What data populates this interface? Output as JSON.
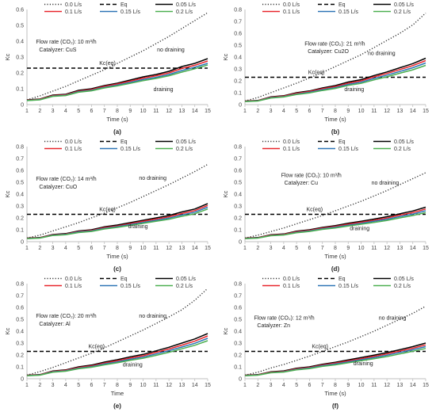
{
  "chart_data": [
    {
      "type": "line",
      "panel_label": "(a)",
      "xlabel": "Time (s)",
      "ylabel": "Kc",
      "xlim": [
        1,
        15
      ],
      "ylim": [
        0,
        0.6
      ],
      "yticks": [
        0,
        0.1,
        0.2,
        0.3,
        0.4,
        0.5,
        0.6
      ],
      "xticks": [
        1,
        2,
        3,
        4,
        5,
        6,
        7,
        8,
        9,
        10,
        11,
        12,
        13,
        14,
        15
      ],
      "grid": false,
      "legend": "top",
      "annotations": [
        "Flow rate (CO₂): 10 m³/h",
        "Catalyzer: CuS",
        "no draining",
        "Kc(eq)",
        "draining"
      ],
      "x": [
        1,
        2,
        3,
        4,
        5,
        6,
        7,
        8,
        9,
        10,
        11,
        12,
        13,
        14,
        15
      ],
      "series": [
        {
          "name": "0.0 L/s",
          "values": [
            0.03,
            0.055,
            0.085,
            0.115,
            0.15,
            0.185,
            0.22,
            0.26,
            0.3,
            0.34,
            0.385,
            0.43,
            0.48,
            0.53,
            0.58
          ]
        },
        {
          "name": "Eq",
          "values": [
            0.23,
            0.23,
            0.23,
            0.23,
            0.23,
            0.23,
            0.23,
            0.23,
            0.23,
            0.23,
            0.23,
            0.23,
            0.23,
            0.23,
            0.23
          ]
        },
        {
          "name": "0.05 L/s",
          "values": [
            0.03,
            0.035,
            0.06,
            0.065,
            0.09,
            0.1,
            0.12,
            0.135,
            0.155,
            0.175,
            0.19,
            0.21,
            0.24,
            0.26,
            0.29
          ]
        },
        {
          "name": "0.1 L/s",
          "values": [
            0.028,
            0.033,
            0.057,
            0.062,
            0.085,
            0.095,
            0.115,
            0.13,
            0.148,
            0.167,
            0.182,
            0.2,
            0.228,
            0.248,
            0.275
          ]
        },
        {
          "name": "0.15 L/s",
          "values": [
            0.026,
            0.031,
            0.054,
            0.059,
            0.081,
            0.09,
            0.109,
            0.123,
            0.14,
            0.158,
            0.172,
            0.19,
            0.215,
            0.236,
            0.26
          ]
        },
        {
          "name": "0.2 L/s",
          "values": [
            0.025,
            0.03,
            0.052,
            0.057,
            0.078,
            0.087,
            0.105,
            0.118,
            0.134,
            0.151,
            0.165,
            0.182,
            0.205,
            0.226,
            0.25
          ]
        }
      ]
    },
    {
      "type": "line",
      "panel_label": "(b)",
      "xlabel": "Time (s)",
      "ylabel": "Kc",
      "xlim": [
        1,
        15
      ],
      "ylim": [
        0,
        0.8
      ],
      "yticks": [
        0,
        0.1,
        0.2,
        0.3,
        0.4,
        0.5,
        0.6,
        0.7,
        0.8
      ],
      "xticks": [
        1,
        2,
        3,
        4,
        5,
        6,
        7,
        8,
        9,
        10,
        11,
        12,
        13,
        14,
        15
      ],
      "grid": false,
      "legend": "top",
      "annotations": [
        "Flow rate (CO₂): 21 m³/h",
        "Catalyzer: Cu2O",
        "no draining",
        "Kc(eq)",
        "draining"
      ],
      "x": [
        1,
        2,
        3,
        4,
        5,
        6,
        7,
        8,
        9,
        10,
        11,
        12,
        13,
        14,
        15
      ],
      "series": [
        {
          "name": "0.0 L/s",
          "values": [
            0.03,
            0.06,
            0.1,
            0.14,
            0.18,
            0.225,
            0.27,
            0.32,
            0.37,
            0.42,
            0.48,
            0.54,
            0.6,
            0.67,
            0.77
          ]
        },
        {
          "name": "Eq",
          "values": [
            0.23,
            0.23,
            0.23,
            0.23,
            0.23,
            0.23,
            0.23,
            0.23,
            0.23,
            0.23,
            0.23,
            0.23,
            0.23,
            0.23,
            0.23
          ]
        },
        {
          "name": "0.05 L/s",
          "values": [
            0.03,
            0.035,
            0.065,
            0.075,
            0.1,
            0.115,
            0.14,
            0.16,
            0.19,
            0.21,
            0.245,
            0.275,
            0.31,
            0.345,
            0.39
          ]
        },
        {
          "name": "0.1 L/s",
          "values": [
            0.028,
            0.033,
            0.062,
            0.071,
            0.095,
            0.11,
            0.133,
            0.152,
            0.18,
            0.2,
            0.233,
            0.262,
            0.295,
            0.328,
            0.37
          ]
        },
        {
          "name": "0.15 L/s",
          "values": [
            0.026,
            0.031,
            0.058,
            0.067,
            0.089,
            0.103,
            0.125,
            0.143,
            0.17,
            0.189,
            0.22,
            0.248,
            0.279,
            0.31,
            0.35
          ]
        },
        {
          "name": "0.2 L/s",
          "values": [
            0.025,
            0.03,
            0.055,
            0.064,
            0.085,
            0.098,
            0.119,
            0.136,
            0.161,
            0.179,
            0.208,
            0.234,
            0.264,
            0.293,
            0.33
          ]
        }
      ]
    },
    {
      "type": "line",
      "panel_label": "(c)",
      "xlabel": "Time (s)",
      "ylabel": "Kc",
      "xlim": [
        1,
        15
      ],
      "ylim": [
        0,
        0.8
      ],
      "yticks": [
        0,
        0.1,
        0.2,
        0.3,
        0.4,
        0.5,
        0.6,
        0.7,
        0.8
      ],
      "xticks": [
        1,
        2,
        3,
        4,
        5,
        6,
        7,
        8,
        9,
        10,
        11,
        12,
        13,
        14,
        15
      ],
      "grid": false,
      "legend": "top",
      "annotations": [
        "Flow rate (CO₂): 14 m³/h",
        "Catalyzer: CuO",
        "no draining",
        "Kc(eq)",
        "draining"
      ],
      "x": [
        1,
        2,
        3,
        4,
        5,
        6,
        7,
        8,
        9,
        10,
        11,
        12,
        13,
        14,
        15
      ],
      "series": [
        {
          "name": "0.0 L/s",
          "values": [
            0.03,
            0.055,
            0.09,
            0.125,
            0.16,
            0.2,
            0.24,
            0.285,
            0.33,
            0.38,
            0.43,
            0.48,
            0.535,
            0.59,
            0.65
          ]
        },
        {
          "name": "Eq",
          "values": [
            0.23,
            0.23,
            0.23,
            0.23,
            0.23,
            0.23,
            0.23,
            0.23,
            0.23,
            0.23,
            0.23,
            0.23,
            0.23,
            0.23,
            0.23
          ]
        },
        {
          "name": "0.05 L/s",
          "values": [
            0.03,
            0.035,
            0.06,
            0.068,
            0.09,
            0.1,
            0.125,
            0.14,
            0.16,
            0.18,
            0.2,
            0.22,
            0.25,
            0.275,
            0.32
          ]
        },
        {
          "name": "0.1 L/s",
          "values": [
            0.028,
            0.033,
            0.057,
            0.064,
            0.085,
            0.095,
            0.118,
            0.132,
            0.152,
            0.171,
            0.19,
            0.209,
            0.237,
            0.261,
            0.305
          ]
        },
        {
          "name": "0.15 L/s",
          "values": [
            0.026,
            0.031,
            0.054,
            0.061,
            0.081,
            0.09,
            0.112,
            0.126,
            0.144,
            0.162,
            0.18,
            0.198,
            0.225,
            0.248,
            0.29
          ]
        },
        {
          "name": "0.2 L/s",
          "values": [
            0.025,
            0.03,
            0.052,
            0.058,
            0.077,
            0.086,
            0.107,
            0.12,
            0.137,
            0.154,
            0.171,
            0.188,
            0.213,
            0.235,
            0.275
          ]
        }
      ]
    },
    {
      "type": "line",
      "panel_label": "(d)",
      "xlabel": "Time (s)",
      "ylabel": "Kc",
      "xlim": [
        1,
        15
      ],
      "ylim": [
        0,
        0.8
      ],
      "yticks": [
        0,
        0.1,
        0.2,
        0.3,
        0.4,
        0.5,
        0.6,
        0.7,
        0.8
      ],
      "xticks": [
        1,
        2,
        3,
        4,
        5,
        6,
        7,
        8,
        9,
        10,
        11,
        12,
        13,
        14,
        15
      ],
      "grid": false,
      "legend": "top",
      "annotations": [
        "Flow rate (CO₂): 10 m³/h",
        "Catalyzer: Cu",
        "no draining",
        "Kc(eq)",
        "draining"
      ],
      "x": [
        1,
        2,
        3,
        4,
        5,
        6,
        7,
        8,
        9,
        10,
        11,
        12,
        13,
        14,
        15
      ],
      "series": [
        {
          "name": "0.0 L/s",
          "values": [
            0.03,
            0.055,
            0.085,
            0.115,
            0.15,
            0.185,
            0.22,
            0.26,
            0.3,
            0.34,
            0.385,
            0.43,
            0.48,
            0.53,
            0.58
          ]
        },
        {
          "name": "Eq",
          "values": [
            0.23,
            0.23,
            0.23,
            0.23,
            0.23,
            0.23,
            0.23,
            0.23,
            0.23,
            0.23,
            0.23,
            0.23,
            0.23,
            0.23,
            0.23
          ]
        },
        {
          "name": "0.05 L/s",
          "values": [
            0.03,
            0.035,
            0.058,
            0.065,
            0.088,
            0.1,
            0.12,
            0.135,
            0.155,
            0.172,
            0.19,
            0.21,
            0.235,
            0.258,
            0.29
          ]
        },
        {
          "name": "0.1 L/s",
          "values": [
            0.028,
            0.033,
            0.055,
            0.062,
            0.083,
            0.095,
            0.114,
            0.128,
            0.147,
            0.163,
            0.18,
            0.199,
            0.223,
            0.245,
            0.275
          ]
        },
        {
          "name": "0.15 L/s",
          "values": [
            0.026,
            0.031,
            0.052,
            0.058,
            0.079,
            0.09,
            0.108,
            0.121,
            0.139,
            0.154,
            0.171,
            0.189,
            0.211,
            0.232,
            0.26
          ]
        },
        {
          "name": "0.2 L/s",
          "values": [
            0.025,
            0.03,
            0.05,
            0.056,
            0.075,
            0.086,
            0.103,
            0.115,
            0.132,
            0.147,
            0.162,
            0.179,
            0.2,
            0.22,
            0.245
          ]
        }
      ]
    },
    {
      "type": "line",
      "panel_label": "(e)",
      "xlabel": "Time",
      "ylabel": "Kc",
      "xlim": [
        1,
        15
      ],
      "ylim": [
        0,
        0.8
      ],
      "yticks": [
        0,
        0.1,
        0.2,
        0.3,
        0.4,
        0.5,
        0.6,
        0.7,
        0.8
      ],
      "xticks": [
        1,
        2,
        3,
        4,
        5,
        6,
        7,
        8,
        9,
        10,
        11,
        12,
        13,
        14,
        15
      ],
      "grid": false,
      "legend": "top",
      "annotations": [
        "Flow rate (CO₂): 20 m³/h",
        "Catalyzer: Al",
        "no draining",
        "Kc(eq)",
        "draining"
      ],
      "x": [
        1,
        2,
        3,
        4,
        5,
        6,
        7,
        8,
        9,
        10,
        11,
        12,
        13,
        14,
        15
      ],
      "series": [
        {
          "name": "0.0 L/s",
          "values": [
            0.03,
            0.06,
            0.095,
            0.135,
            0.175,
            0.215,
            0.26,
            0.31,
            0.36,
            0.41,
            0.465,
            0.52,
            0.58,
            0.66,
            0.76
          ]
        },
        {
          "name": "Eq",
          "values": [
            0.23,
            0.23,
            0.23,
            0.23,
            0.23,
            0.23,
            0.23,
            0.23,
            0.23,
            0.23,
            0.23,
            0.23,
            0.23,
            0.23,
            0.23
          ]
        },
        {
          "name": "0.05 L/s",
          "values": [
            0.03,
            0.035,
            0.065,
            0.075,
            0.1,
            0.115,
            0.14,
            0.16,
            0.185,
            0.205,
            0.235,
            0.265,
            0.3,
            0.335,
            0.38
          ]
        },
        {
          "name": "0.1 L/s",
          "values": [
            0.028,
            0.033,
            0.061,
            0.071,
            0.094,
            0.108,
            0.132,
            0.151,
            0.174,
            0.193,
            0.222,
            0.25,
            0.283,
            0.316,
            0.36
          ]
        },
        {
          "name": "0.15 L/s",
          "values": [
            0.026,
            0.031,
            0.058,
            0.067,
            0.089,
            0.102,
            0.124,
            0.142,
            0.164,
            0.182,
            0.209,
            0.236,
            0.267,
            0.298,
            0.34
          ]
        },
        {
          "name": "0.2 L/s",
          "values": [
            0.025,
            0.03,
            0.055,
            0.063,
            0.084,
            0.097,
            0.117,
            0.134,
            0.155,
            0.172,
            0.197,
            0.222,
            0.252,
            0.281,
            0.32
          ]
        }
      ]
    },
    {
      "type": "line",
      "panel_label": "(f)",
      "xlabel": "Time (s)",
      "ylabel": "Kc",
      "xlim": [
        1,
        15
      ],
      "ylim": [
        0,
        0.8
      ],
      "yticks": [
        0,
        0.1,
        0.2,
        0.3,
        0.4,
        0.5,
        0.6,
        0.7,
        0.8
      ],
      "xticks": [
        1,
        2,
        3,
        4,
        5,
        6,
        7,
        8,
        9,
        10,
        11,
        12,
        13,
        14,
        15
      ],
      "grid": false,
      "legend": "top",
      "annotations": [
        "Flow rate (CO₂): 12 m³/h",
        "Catalyzer: Zn",
        "no draining",
        "Kc(eq)",
        "draining"
      ],
      "x": [
        1,
        2,
        3,
        4,
        5,
        6,
        7,
        8,
        9,
        10,
        11,
        12,
        13,
        14,
        15
      ],
      "series": [
        {
          "name": "0.0 L/s",
          "values": [
            0.03,
            0.055,
            0.09,
            0.12,
            0.155,
            0.19,
            0.23,
            0.27,
            0.31,
            0.355,
            0.4,
            0.45,
            0.5,
            0.55,
            0.61
          ]
        },
        {
          "name": "Eq",
          "values": [
            0.23,
            0.23,
            0.23,
            0.23,
            0.23,
            0.23,
            0.23,
            0.23,
            0.23,
            0.23,
            0.23,
            0.23,
            0.23,
            0.23,
            0.23
          ]
        },
        {
          "name": "0.05 L/s",
          "values": [
            0.03,
            0.035,
            0.058,
            0.066,
            0.088,
            0.1,
            0.122,
            0.138,
            0.158,
            0.178,
            0.198,
            0.22,
            0.245,
            0.27,
            0.3
          ]
        },
        {
          "name": "0.1 L/s",
          "values": [
            0.028,
            0.033,
            0.055,
            0.062,
            0.083,
            0.095,
            0.116,
            0.131,
            0.15,
            0.169,
            0.188,
            0.209,
            0.233,
            0.257,
            0.285
          ]
        },
        {
          "name": "0.15 L/s",
          "values": [
            0.026,
            0.031,
            0.052,
            0.059,
            0.079,
            0.09,
            0.11,
            0.124,
            0.142,
            0.16,
            0.178,
            0.198,
            0.221,
            0.244,
            0.27
          ]
        },
        {
          "name": "0.2 L/s",
          "values": [
            0.025,
            0.03,
            0.05,
            0.056,
            0.075,
            0.085,
            0.104,
            0.117,
            0.134,
            0.151,
            0.168,
            0.187,
            0.209,
            0.231,
            0.255
          ]
        }
      ]
    }
  ],
  "series_styles": [
    {
      "color": "#333333",
      "dash": "dotted"
    },
    {
      "color": "#000000",
      "dash": "dashed"
    },
    {
      "color": "#000000",
      "dash": "solid"
    },
    {
      "color": "#e8262c",
      "dash": "solid"
    },
    {
      "color": "#2e75b6",
      "dash": "solid"
    },
    {
      "color": "#4caf50",
      "dash": "solid"
    }
  ]
}
